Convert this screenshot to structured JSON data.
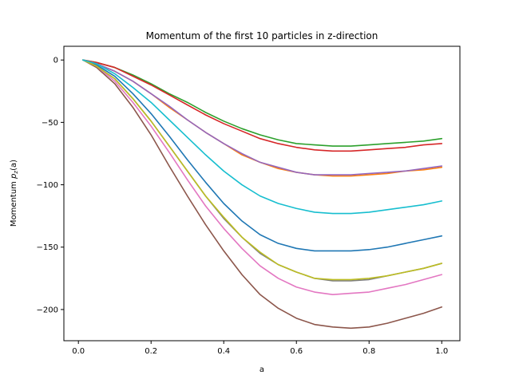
{
  "chart_data": {
    "type": "line",
    "title": "Momentum of the first 10 particles in z-direction",
    "xlabel": "a",
    "ylabel_prefix": "Momentum ",
    "ylabel_var": "p",
    "ylabel_sub": "z",
    "ylabel_suffix": "(a)",
    "xlim": [
      -0.04,
      1.05
    ],
    "ylim": [
      -225,
      11
    ],
    "xticks": [
      0.0,
      0.2,
      0.4,
      0.6,
      0.8,
      1.0
    ],
    "xtick_labels": [
      "0.0",
      "0.2",
      "0.4",
      "0.6",
      "0.8",
      "1.0"
    ],
    "yticks": [
      0,
      -50,
      -100,
      -150,
      -200
    ],
    "ytick_labels": [
      "0",
      "−50",
      "−100",
      "−150",
      "−200"
    ],
    "grid": false,
    "legend": false,
    "x": [
      0.0125,
      0.05,
      0.1,
      0.15,
      0.2,
      0.25,
      0.3,
      0.35,
      0.4,
      0.45,
      0.5,
      0.55,
      0.6,
      0.65,
      0.7,
      0.75,
      0.8,
      0.85,
      0.9,
      0.95,
      1.0
    ],
    "series": [
      {
        "color": "#1f77b4",
        "values": [
          0,
          -4,
          -13,
          -27,
          -43,
          -61,
          -80,
          -98,
          -115,
          -129,
          -140,
          -147,
          -151,
          -153,
          -153,
          -153,
          -152,
          -150,
          -147,
          -144,
          -141
        ]
      },
      {
        "color": "#ff7f0e",
        "values": [
          0,
          -3,
          -9,
          -17,
          -27,
          -38,
          -48,
          -58,
          -67,
          -76,
          -82,
          -87,
          -90,
          -92,
          -93,
          -93,
          -92,
          -91,
          -89,
          -88,
          -86
        ]
      },
      {
        "color": "#2ca02c",
        "values": [
          0,
          -2,
          -6,
          -12,
          -19,
          -27,
          -34,
          -42,
          -49,
          -55,
          -60,
          -64,
          -67,
          -68,
          -69,
          -69,
          -68,
          -67,
          -66,
          -65,
          -63
        ]
      },
      {
        "color": "#d62728",
        "values": [
          0,
          -2,
          -6,
          -13,
          -20,
          -28,
          -36,
          -44,
          -51,
          -57,
          -63,
          -67,
          -70,
          -72,
          -73,
          -73,
          -72,
          -71,
          -70,
          -68,
          -67
        ]
      },
      {
        "color": "#9467bd",
        "values": [
          0,
          -3,
          -9,
          -17,
          -27,
          -37,
          -48,
          -58,
          -67,
          -75,
          -82,
          -86,
          -90,
          -92,
          -92,
          -92,
          -91,
          -90,
          -89,
          -87,
          -85
        ]
      },
      {
        "color": "#8c564b",
        "values": [
          0,
          -6,
          -19,
          -38,
          -60,
          -85,
          -109,
          -132,
          -153,
          -172,
          -188,
          -199,
          -207,
          -212,
          -214,
          -215,
          -214,
          -211,
          -207,
          -203,
          -198
        ]
      },
      {
        "color": "#e377c2",
        "values": [
          0,
          -5,
          -17,
          -34,
          -53,
          -74,
          -96,
          -117,
          -135,
          -151,
          -165,
          -175,
          -182,
          -186,
          -188,
          -187,
          -186,
          -183,
          -180,
          -176,
          -172
        ]
      },
      {
        "color": "#7f7f7f",
        "values": [
          0,
          -5,
          -15,
          -31,
          -49,
          -69,
          -89,
          -109,
          -127,
          -142,
          -155,
          -164,
          -170,
          -175,
          -177,
          -177,
          -176,
          -173,
          -170,
          -167,
          -163
        ]
      },
      {
        "color": "#bcbd22",
        "values": [
          0,
          -5,
          -15,
          -31,
          -49,
          -69,
          -89,
          -109,
          -126,
          -142,
          -154,
          -164,
          -170,
          -175,
          -176,
          -176,
          -175,
          -173,
          -170,
          -167,
          -163
        ]
      },
      {
        "color": "#17becf",
        "values": [
          0,
          -3,
          -11,
          -22,
          -34,
          -48,
          -62,
          -76,
          -89,
          -100,
          -109,
          -115,
          -119,
          -122,
          -123,
          -123,
          -122,
          -120,
          -118,
          -116,
          -113
        ]
      }
    ]
  }
}
